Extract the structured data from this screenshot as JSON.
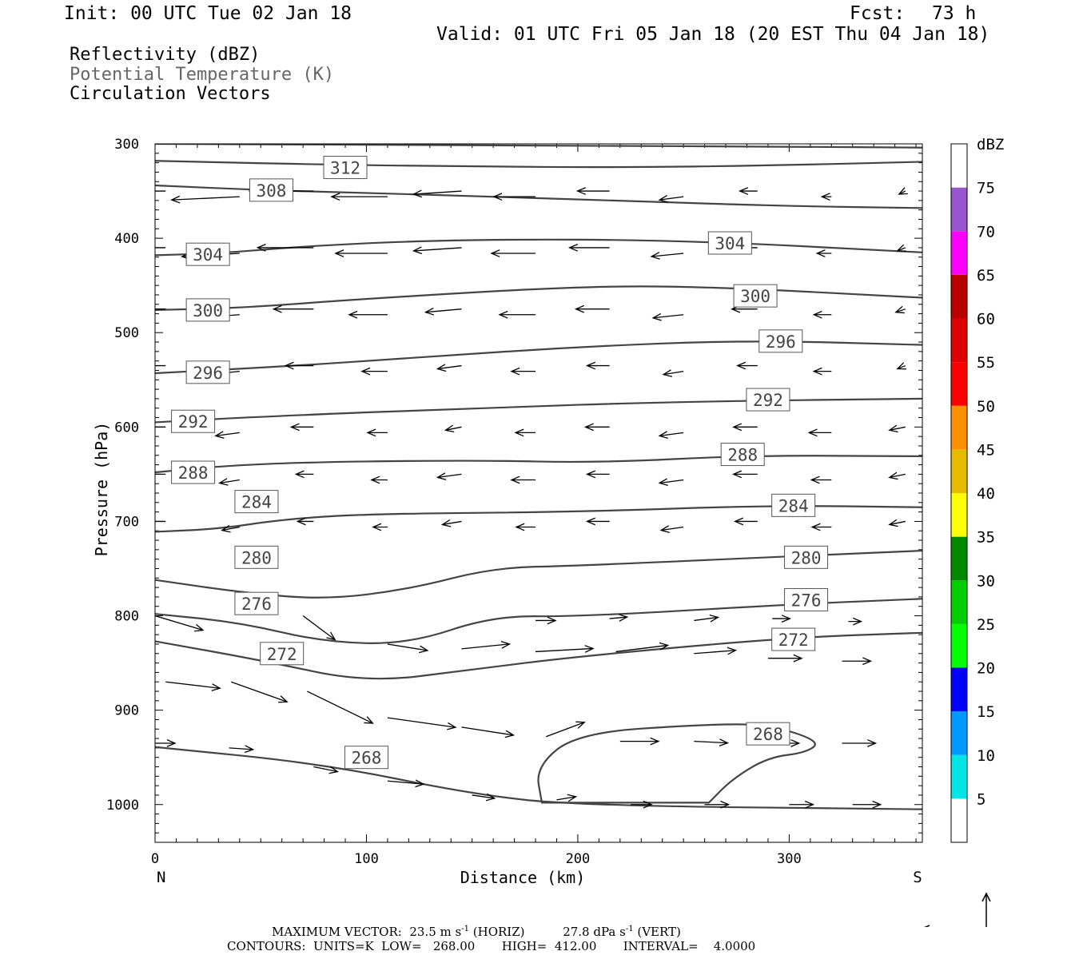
{
  "header": {
    "init": "Init: 00 UTC Tue 02 Jan 18",
    "fcst_label": "Fcst:",
    "fcst_value": "73 h",
    "valid": "Valid: 01 UTC Fri 05 Jan 18 (20 EST Thu 04 Jan 18)"
  },
  "legend_text": {
    "reflectivity": "Reflectivity (dBZ)",
    "theta": "Potential Temperature (K)",
    "vectors": "Circulation Vectors"
  },
  "chart_data": {
    "type": "cross-section",
    "xlabel": "Distance (km)",
    "ylabel": "Pressure (hPa)",
    "x_end_labels": {
      "left": "N",
      "right": "S"
    },
    "xlim": [
      0,
      363
    ],
    "ylim": [
      300,
      1040
    ],
    "xticks": [
      0,
      100,
      200,
      300
    ],
    "yticks": [
      300,
      400,
      500,
      600,
      700,
      800,
      900,
      1000
    ],
    "theta_contours": [
      {
        "label": "312",
        "points": [
          [
            0,
            300
          ],
          [
            100,
            301
          ],
          [
            200,
            302
          ],
          [
            300,
            303
          ],
          [
            363,
            304
          ]
        ]
      },
      {
        "label": "312",
        "label_at": [
          90,
          325
        ],
        "points": [
          [
            0,
            318
          ],
          [
            80,
            322
          ],
          [
            150,
            324
          ],
          [
            220,
            325
          ],
          [
            290,
            323
          ],
          [
            363,
            319
          ]
        ]
      },
      {
        "label": "308",
        "label_at": [
          55,
          349
        ],
        "points": [
          [
            0,
            344
          ],
          [
            50,
            349
          ],
          [
            100,
            352
          ],
          [
            160,
            356
          ],
          [
            230,
            361
          ],
          [
            300,
            366
          ],
          [
            363,
            368
          ]
        ]
      },
      {
        "label": "304",
        "label_at": [
          25,
          417
        ],
        "points": [
          [
            0,
            418
          ],
          [
            30,
            416
          ],
          [
            80,
            407
          ],
          [
            150,
            401
          ],
          [
            250,
            402
          ],
          [
            363,
            415
          ]
        ]
      },
      {
        "label": "304",
        "label_at": [
          272,
          405
        ]
      },
      {
        "label": "300",
        "label_at": [
          25,
          476
        ],
        "points": [
          [
            0,
            476
          ],
          [
            40,
            474
          ],
          [
            100,
            464
          ],
          [
            200,
            451
          ],
          [
            260,
            451
          ],
          [
            363,
            463
          ]
        ]
      },
      {
        "label": "300",
        "label_at": [
          284,
          461
        ]
      },
      {
        "label": "296",
        "label_at": [
          25,
          542
        ],
        "points": [
          [
            0,
            543
          ],
          [
            60,
            536
          ],
          [
            120,
            527
          ],
          [
            200,
            515
          ],
          [
            280,
            508
          ],
          [
            363,
            513
          ]
        ]
      },
      {
        "label": "296",
        "label_at": [
          296,
          509
        ]
      },
      {
        "label": "292",
        "label_at": [
          18,
          594
        ],
        "points": [
          [
            0,
            595
          ],
          [
            50,
            589
          ],
          [
            150,
            580
          ],
          [
            250,
            573
          ],
          [
            363,
            570
          ]
        ]
      },
      {
        "label": "292",
        "label_at": [
          290,
          571
        ]
      },
      {
        "label": "288",
        "label_at": [
          18,
          648
        ],
        "points": [
          [
            0,
            648
          ],
          [
            50,
            638
          ],
          [
            150,
            635
          ],
          [
            210,
            638
          ],
          [
            280,
            630
          ],
          [
            363,
            631
          ]
        ]
      },
      {
        "label": "288",
        "label_at": [
          278,
          629
        ]
      },
      {
        "label": "284",
        "label_at": [
          48,
          679
        ],
        "points": [
          [
            0,
            711
          ],
          [
            30,
            708
          ],
          [
            60,
            698
          ],
          [
            100,
            692
          ],
          [
            200,
            690
          ],
          [
            290,
            683
          ],
          [
            363,
            685
          ]
        ]
      },
      {
        "label": "284",
        "label_at": [
          302,
          683
        ]
      },
      {
        "label": "280",
        "label_at": [
          48,
          738
        ],
        "points": [
          [
            0,
            762
          ],
          [
            40,
            775
          ],
          [
            80,
            783
          ],
          [
            120,
            772
          ],
          [
            160,
            749
          ],
          [
            200,
            747
          ],
          [
            300,
            737
          ],
          [
            363,
            731
          ]
        ]
      },
      {
        "label": "280",
        "label_at": [
          308,
          738
        ]
      },
      {
        "label": "276",
        "label_at": [
          48,
          787
        ],
        "points": [
          [
            0,
            798
          ],
          [
            40,
            807
          ],
          [
            80,
            828
          ],
          [
            120,
            830
          ],
          [
            160,
            800
          ],
          [
            200,
            801
          ],
          [
            300,
            788
          ],
          [
            363,
            782
          ]
        ]
      },
      {
        "label": "276",
        "label_at": [
          308,
          783
        ]
      },
      {
        "label": "272",
        "label_at": [
          60,
          840
        ],
        "points": [
          [
            0,
            827
          ],
          [
            50,
            847
          ],
          [
            100,
            871
          ],
          [
            150,
            857
          ],
          [
            200,
            843
          ],
          [
            300,
            823
          ],
          [
            363,
            818
          ]
        ]
      },
      {
        "label": "272",
        "label_at": [
          302,
          825
        ]
      },
      {
        "label": "268",
        "label_at": [
          100,
          950
        ],
        "points": [
          [
            0,
            939
          ],
          [
            80,
            957
          ],
          [
            150,
            989
          ],
          [
            200,
            1001
          ],
          [
            363,
            1005
          ]
        ]
      },
      {
        "label": "268",
        "label_at": [
          290,
          925
        ],
        "closed": true,
        "points": [
          [
            183,
            998
          ],
          [
            180,
            960
          ],
          [
            200,
            924
          ],
          [
            260,
            915
          ],
          [
            290,
            915
          ],
          [
            315,
            933
          ],
          [
            308,
            945
          ],
          [
            290,
            950
          ],
          [
            273,
            973
          ],
          [
            262,
            998
          ]
        ]
      }
    ],
    "circulation_vectors_hint": "Northward (leftward) flow aloft above ~650 hPa; southward (rightward) low-level flow below ~780 hPa",
    "color_scale": {
      "unit": "dBZ",
      "labels": [
        "5",
        "10",
        "15",
        "20",
        "25",
        "30",
        "35",
        "40",
        "45",
        "50",
        "55",
        "60",
        "65",
        "70",
        "75"
      ],
      "colors": [
        "#00e5e5",
        "#0099ff",
        "#0000ff",
        "#00ff00",
        "#00cc00",
        "#008800",
        "#ffff00",
        "#e6bb00",
        "#ff9000",
        "#ff0000",
        "#dd0000",
        "#bb0000",
        "#ff00ff",
        "#9955cc",
        "#ffffff"
      ]
    }
  },
  "footer": {
    "max_vector_label": "MAXIMUM VECTOR:",
    "horiz_value": "23.5 m s",
    "horiz_unit": "(HORIZ)",
    "vert_value": "27.8 dPa s",
    "vert_unit": "(VERT)",
    "exponent": "-1",
    "contours": "CONTOURS:  UNITS=K  LOW=   268.00       HIGH=  412.00       INTERVAL=    4.0000"
  }
}
